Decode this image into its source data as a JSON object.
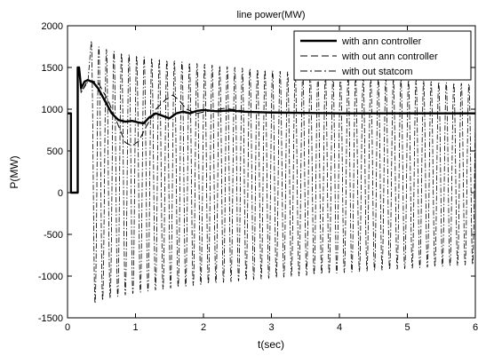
{
  "chart_data": {
    "type": "line",
    "title": "line power(MW)",
    "xlabel": "t(sec)",
    "ylabel": "P(MW)",
    "xlim": [
      0,
      6
    ],
    "ylim": [
      -1500,
      2000
    ],
    "xticks": [
      0,
      1,
      2,
      3,
      4,
      5,
      6
    ],
    "yticks": [
      -1500,
      -1000,
      -500,
      0,
      500,
      1000,
      1500,
      2000
    ],
    "xtick_labels": [
      "0",
      "1",
      "2",
      "3",
      "4",
      "5",
      "6"
    ],
    "ytick_labels": [
      "-1500",
      "-1000",
      "-500",
      "0",
      "500",
      "1000",
      "1500",
      "2000"
    ],
    "grid": false,
    "legend_position": "top-right",
    "series": [
      {
        "name": "with ann controller",
        "style": "solid-thick",
        "color": "#000000",
        "points": [
          [
            0,
            950
          ],
          [
            0.05,
            950
          ],
          [
            0.05,
            0
          ],
          [
            0.15,
            0
          ],
          [
            0.15,
            1500
          ],
          [
            0.17,
            1500
          ],
          [
            0.2,
            1250
          ],
          [
            0.25,
            1330
          ],
          [
            0.3,
            1350
          ],
          [
            0.38,
            1320
          ],
          [
            0.45,
            1250
          ],
          [
            0.55,
            1100
          ],
          [
            0.65,
            950
          ],
          [
            0.75,
            870
          ],
          [
            0.85,
            850
          ],
          [
            0.95,
            860
          ],
          [
            1.05,
            840
          ],
          [
            1.12,
            830
          ],
          [
            1.2,
            900
          ],
          [
            1.3,
            950
          ],
          [
            1.4,
            920
          ],
          [
            1.5,
            890
          ],
          [
            1.6,
            950
          ],
          [
            1.7,
            970
          ],
          [
            1.8,
            950
          ],
          [
            1.9,
            980
          ],
          [
            2.0,
            990
          ],
          [
            2.2,
            975
          ],
          [
            2.4,
            985
          ],
          [
            2.6,
            970
          ],
          [
            2.8,
            965
          ],
          [
            3.0,
            960
          ],
          [
            3.5,
            955
          ],
          [
            4.0,
            950
          ],
          [
            4.5,
            950
          ],
          [
            5.0,
            950
          ],
          [
            5.5,
            950
          ],
          [
            6.0,
            950
          ]
        ]
      },
      {
        "name": "with out ann controller",
        "style": "dashed",
        "color": "#000000",
        "points": [
          [
            0,
            950
          ],
          [
            0.05,
            950
          ],
          [
            0.05,
            0
          ],
          [
            0.15,
            0
          ],
          [
            0.15,
            1500
          ],
          [
            0.17,
            1500
          ],
          [
            0.2,
            1200
          ],
          [
            0.3,
            1350
          ],
          [
            0.45,
            1320
          ],
          [
            0.6,
            1100
          ],
          [
            0.75,
            800
          ],
          [
            0.85,
            600
          ],
          [
            0.95,
            560
          ],
          [
            1.05,
            620
          ],
          [
            1.15,
            780
          ],
          [
            1.3,
            1000
          ],
          [
            1.45,
            1120
          ],
          [
            1.55,
            1170
          ],
          [
            1.65,
            1100
          ],
          [
            1.75,
            1000
          ],
          [
            1.9,
            950
          ],
          [
            2.1,
            980
          ],
          [
            2.3,
            1010
          ],
          [
            2.5,
            990
          ],
          [
            2.7,
            965
          ],
          [
            3.0,
            960
          ],
          [
            3.5,
            955
          ],
          [
            4.0,
            950
          ],
          [
            5.0,
            950
          ],
          [
            6.0,
            950
          ]
        ]
      },
      {
        "name": "with out statcom",
        "style": "dash-dot",
        "color": "#000000",
        "generator": "oscillation",
        "center": 220,
        "amplitude_start": 1600,
        "amplitude_end": 1080,
        "frequency_hz": 9,
        "start_t": 0.35,
        "end_t": 6.0,
        "lead_in": [
          [
            0,
            950
          ],
          [
            0.05,
            950
          ],
          [
            0.05,
            0
          ],
          [
            0.15,
            0
          ],
          [
            0.15,
            1500
          ],
          [
            0.17,
            1500
          ],
          [
            0.2,
            1200
          ],
          [
            0.3,
            1330
          ]
        ]
      }
    ]
  }
}
